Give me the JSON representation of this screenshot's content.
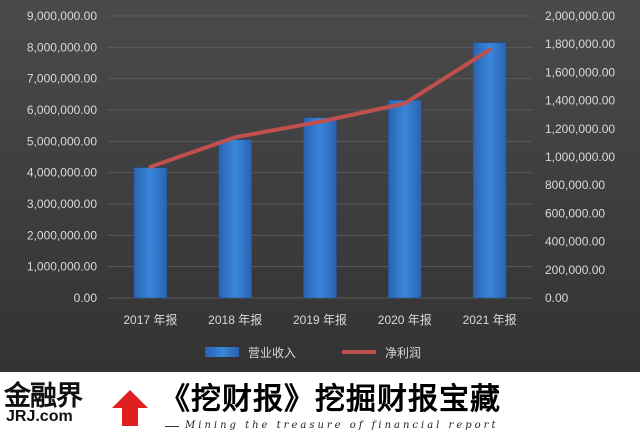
{
  "chart_data": {
    "type": "bar",
    "categories": [
      "2017 年报",
      "2018 年报",
      "2019 年报",
      "2020 年报",
      "2021 年报"
    ],
    "series": [
      {
        "name": "营业收入",
        "type": "bar",
        "axis": "left",
        "values": [
          4160000,
          5050000,
          5750000,
          6310000,
          8150000
        ]
      },
      {
        "name": "净利润",
        "type": "line",
        "axis": "right",
        "values": [
          930000,
          1140000,
          1250000,
          1380000,
          1760000
        ]
      }
    ],
    "y_left": {
      "min": 0,
      "max": 9000000,
      "step": 1000000,
      "labels": [
        "0.00",
        "1,000,000.00",
        "2,000,000.00",
        "3,000,000.00",
        "4,000,000.00",
        "5,000,000.00",
        "6,000,000.00",
        "7,000,000.00",
        "8,000,000.00",
        "9,000,000.00"
      ]
    },
    "y_right": {
      "min": 0,
      "max": 2000000,
      "step": 200000,
      "labels": [
        "0.00",
        "200,000.00",
        "400,000.00",
        "600,000.00",
        "800,000.00",
        "1,000,000.00",
        "1,200,000.00",
        "1,400,000.00",
        "1,600,000.00",
        "1,800,000.00",
        "2,000,000.00"
      ]
    },
    "grid": true,
    "legend_position": "bottom",
    "colors": {
      "background": "#3f3f3f",
      "bar": "#2e75c9",
      "line": "#c0504d",
      "grid": "#5a5a5a",
      "text": "#d9d9d9"
    }
  },
  "footer": {
    "logo_cn": "金融界",
    "logo_en": "JRJ.com",
    "slogan": "《挖财报》挖掘财报宝藏",
    "tagline": "Mining the treasure of financial report"
  }
}
